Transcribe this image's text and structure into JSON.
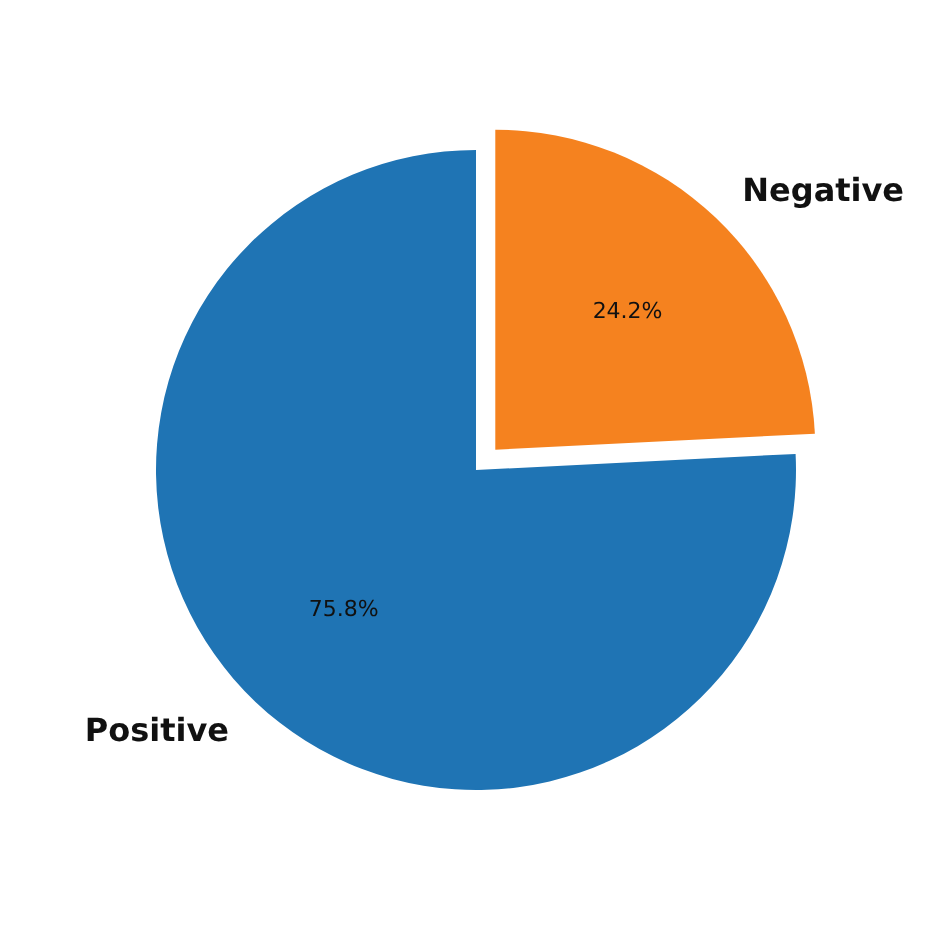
{
  "chart_data": {
    "type": "pie",
    "categories": [
      "Negative",
      "Positive"
    ],
    "values": [
      24.2,
      75.8
    ],
    "colors": [
      "#f5821f",
      "#1f74b4"
    ],
    "value_labels": [
      "24.2%",
      "75.8%"
    ]
  }
}
